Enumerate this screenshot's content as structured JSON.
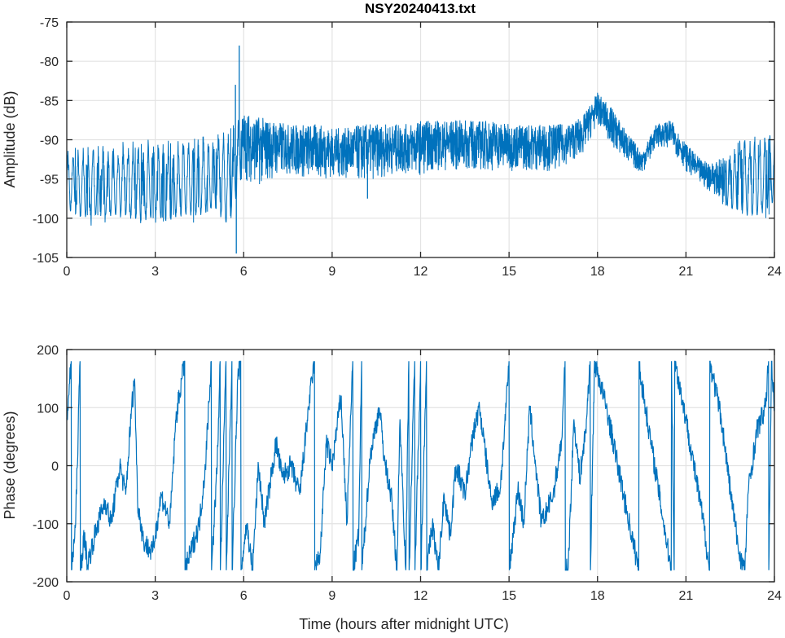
{
  "chart_data": [
    {
      "type": "line",
      "title": "NSY20240413.txt",
      "xlabel": "",
      "ylabel": "Amplitude (dB)",
      "xlim": [
        0,
        24
      ],
      "ylim": [
        -105,
        -75
      ],
      "xticks": [
        0,
        3,
        6,
        9,
        12,
        15,
        18,
        21,
        24
      ],
      "yticks": [
        -105,
        -100,
        -95,
        -90,
        -85,
        -80,
        -75
      ],
      "grid": true,
      "color": "#0072BD",
      "representation": "envelope of rapidly fluctuating signal, sampled every 0.5 h",
      "x": [
        0,
        0.5,
        1,
        1.5,
        2,
        2.5,
        3,
        3.5,
        4,
        4.5,
        5,
        5.5,
        6,
        6.5,
        7,
        7.5,
        8,
        8.5,
        9,
        9.5,
        10,
        10.5,
        11,
        11.5,
        12,
        12.5,
        13,
        13.5,
        14,
        14.5,
        15,
        15.5,
        16,
        16.5,
        17,
        17.5,
        18,
        18.5,
        19,
        19.5,
        20,
        20.5,
        21,
        21.5,
        22,
        22.5,
        23,
        23.5,
        24
      ],
      "upper": [
        -91,
        -91,
        -90.5,
        -90.5,
        -90,
        -90,
        -89.5,
        -90,
        -89.5,
        -89.5,
        -89,
        -88.5,
        -86.5,
        -87,
        -87.5,
        -88,
        -88,
        -88,
        -88.5,
        -88.5,
        -88,
        -88,
        -88,
        -88,
        -87.5,
        -87.5,
        -87.5,
        -87.5,
        -87.5,
        -87.5,
        -88,
        -88,
        -88,
        -88,
        -88,
        -87,
        -84,
        -86,
        -89,
        -91.5,
        -88,
        -87.5,
        -90.5,
        -92.5,
        -93,
        -91,
        -89.5,
        -89.5,
        -89
      ],
      "lower": [
        -100,
        -101,
        -101,
        -101,
        -101,
        -102,
        -101,
        -102,
        -101,
        -101,
        -100,
        -103,
        -95,
        -96,
        -95,
        -94.5,
        -95,
        -95,
        -95,
        -95,
        -95.5,
        -95,
        -94.5,
        -94.5,
        -94.5,
        -94,
        -94,
        -94,
        -94,
        -94,
        -94,
        -94,
        -94,
        -94,
        -93,
        -92,
        -88,
        -91,
        -93,
        -94.5,
        -91,
        -91,
        -94,
        -96,
        -97,
        -100,
        -101,
        -101,
        -99
      ],
      "spikes": [
        [
          5.72,
          -83
        ],
        [
          5.75,
          -104.5
        ],
        [
          5.85,
          -78
        ],
        [
          10.2,
          -97.5
        ]
      ]
    },
    {
      "type": "line",
      "title": "",
      "xlabel": "Time (hours after midnight UTC)",
      "ylabel": "Phase (degrees)",
      "xlim": [
        0,
        24
      ],
      "ylim": [
        -200,
        200
      ],
      "xticks": [
        0,
        3,
        6,
        9,
        12,
        15,
        18,
        21,
        24
      ],
      "yticks": [
        -200,
        -100,
        0,
        100,
        200
      ],
      "grid": true,
      "color": "#0072BD",
      "points": [
        [
          0,
          80
        ],
        [
          0.15,
          180
        ],
        [
          0.16,
          -180
        ],
        [
          0.3,
          -100
        ],
        [
          0.45,
          180
        ],
        [
          0.46,
          -180
        ],
        [
          0.6,
          -120
        ],
        [
          0.7,
          -170
        ],
        [
          1,
          -110
        ],
        [
          1.3,
          -60
        ],
        [
          1.5,
          -100
        ],
        [
          1.8,
          0
        ],
        [
          2,
          -50
        ],
        [
          2.2,
          100
        ],
        [
          2.3,
          150
        ],
        [
          2.4,
          -60
        ],
        [
          2.6,
          -130
        ],
        [
          2.9,
          -150
        ],
        [
          3.0,
          -120
        ],
        [
          3.2,
          -50
        ],
        [
          3.5,
          -100
        ],
        [
          3.7,
          80
        ],
        [
          3.9,
          150
        ],
        [
          4,
          180
        ],
        [
          4.01,
          -180
        ],
        [
          4.2,
          -150
        ],
        [
          4.5,
          -100
        ],
        [
          4.7,
          0
        ],
        [
          4.9,
          180
        ],
        [
          4.91,
          -180
        ],
        [
          5.1,
          0
        ],
        [
          5.2,
          180
        ],
        [
          5.21,
          -180
        ],
        [
          5.4,
          180
        ],
        [
          5.41,
          -180
        ],
        [
          5.6,
          180
        ],
        [
          5.61,
          -180
        ],
        [
          5.8,
          150
        ],
        [
          5.9,
          180
        ],
        [
          5.91,
          -180
        ],
        [
          6.1,
          -100
        ],
        [
          6.3,
          -180
        ],
        [
          6.5,
          0
        ],
        [
          6.7,
          -100
        ],
        [
          6.9,
          -30
        ],
        [
          7.1,
          40
        ],
        [
          7.3,
          -20
        ],
        [
          7.6,
          0
        ],
        [
          7.9,
          -50
        ],
        [
          8.2,
          100
        ],
        [
          8.4,
          180
        ],
        [
          8.41,
          -180
        ],
        [
          8.6,
          -150
        ],
        [
          8.8,
          40
        ],
        [
          9,
          0
        ],
        [
          9.3,
          120
        ],
        [
          9.5,
          -100
        ],
        [
          9.7,
          180
        ],
        [
          9.71,
          -180
        ],
        [
          9.9,
          -120
        ],
        [
          10,
          180
        ],
        [
          10.01,
          -180
        ],
        [
          10.3,
          20
        ],
        [
          10.6,
          100
        ],
        [
          10.8,
          0
        ],
        [
          11,
          -50
        ],
        [
          11.2,
          -180
        ],
        [
          11.3,
          80
        ],
        [
          11.5,
          -180
        ],
        [
          11.6,
          180
        ],
        [
          11.61,
          -180
        ],
        [
          11.8,
          180
        ],
        [
          11.81,
          -180
        ],
        [
          12,
          180
        ],
        [
          12.01,
          -180
        ],
        [
          12.2,
          180
        ],
        [
          12.21,
          -180
        ],
        [
          12.4,
          -100
        ],
        [
          12.6,
          -180
        ],
        [
          12.8,
          -50
        ],
        [
          13,
          -120
        ],
        [
          13.2,
          0
        ],
        [
          13.5,
          -50
        ],
        [
          13.8,
          60
        ],
        [
          14,
          100
        ],
        [
          14.2,
          20
        ],
        [
          14.4,
          -60
        ],
        [
          14.7,
          -40
        ],
        [
          14.9,
          100
        ],
        [
          15.0,
          180
        ],
        [
          15.01,
          -180
        ],
        [
          15.3,
          -40
        ],
        [
          15.5,
          -100
        ],
        [
          15.7,
          100
        ],
        [
          15.9,
          0
        ],
        [
          16.1,
          -100
        ],
        [
          16.5,
          -50
        ],
        [
          16.8,
          50
        ],
        [
          16.9,
          180
        ],
        [
          16.91,
          -180
        ],
        [
          17.0,
          -180
        ],
        [
          17.2,
          80
        ],
        [
          17.4,
          -20
        ],
        [
          17.6,
          60
        ],
        [
          17.75,
          180
        ],
        [
          17.76,
          -180
        ],
        [
          17.9,
          180
        ],
        [
          18.3,
          100
        ],
        [
          19,
          -80
        ],
        [
          19.4,
          -180
        ],
        [
          19.41,
          180
        ],
        [
          19.5,
          140
        ],
        [
          20.5,
          -180
        ],
        [
          20.51,
          180
        ],
        [
          20.6,
          -180
        ],
        [
          20.62,
          180
        ],
        [
          21,
          80
        ],
        [
          21.6,
          -100
        ],
        [
          21.8,
          -180
        ],
        [
          21.81,
          180
        ],
        [
          22.2,
          80
        ],
        [
          22.5,
          -40
        ],
        [
          22.8,
          -150
        ],
        [
          23.0,
          -180
        ],
        [
          23.1,
          -50
        ],
        [
          23.4,
          60
        ],
        [
          23.7,
          100
        ],
        [
          23.8,
          180
        ],
        [
          23.81,
          -180
        ],
        [
          23.9,
          180
        ],
        [
          24,
          100
        ]
      ]
    }
  ]
}
